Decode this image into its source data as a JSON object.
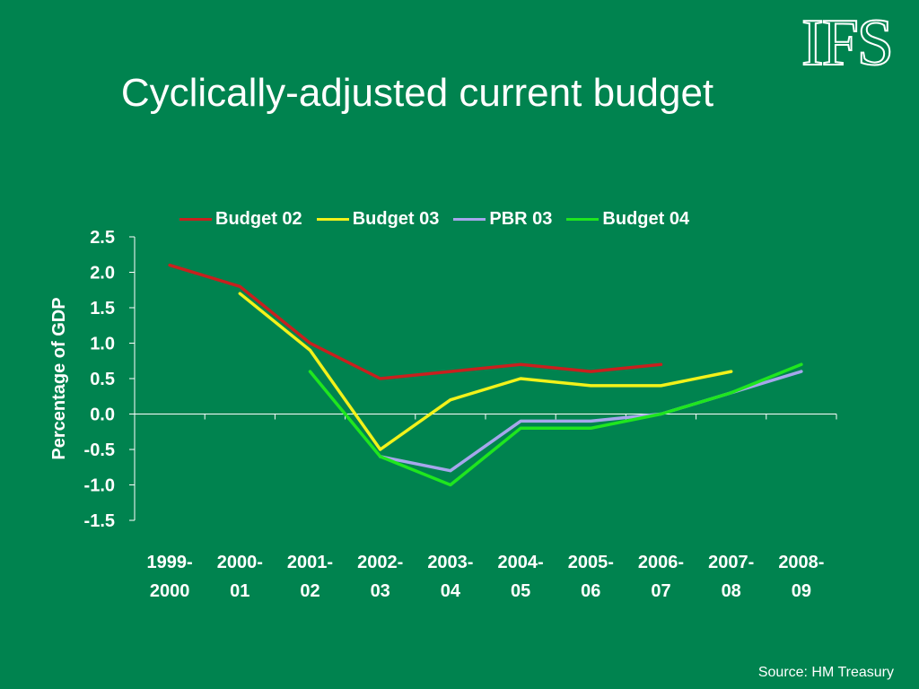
{
  "logo_text": "IFS",
  "source": "Source: HM Treasury",
  "colors": {
    "background": "#00834f",
    "axis": "#ffffff",
    "text": "#ffffff"
  },
  "chart_data": {
    "type": "line",
    "title": "Cyclically-adjusted current budget",
    "xlabel": "",
    "ylabel": "Percentage of GDP",
    "ylim": [
      -1.5,
      2.5
    ],
    "yticks": [
      "2.5",
      "2.0",
      "1.5",
      "1.0",
      "0.5",
      "0.0",
      "-0.5",
      "-1.0",
      "-1.5"
    ],
    "categories": [
      "1999-2000",
      "2000-01",
      "2001-02",
      "2002-03",
      "2003-04",
      "2004-05",
      "2005-06",
      "2006-07",
      "2007-08",
      "2008-09"
    ],
    "category_lines": [
      [
        "1999-",
        "2000"
      ],
      [
        "2000-",
        "01"
      ],
      [
        "2001-",
        "02"
      ],
      [
        "2002-",
        "03"
      ],
      [
        "2003-",
        "04"
      ],
      [
        "2004-",
        "05"
      ],
      [
        "2005-",
        "06"
      ],
      [
        "2006-",
        "07"
      ],
      [
        "2007-",
        "08"
      ],
      [
        "2008-",
        "09"
      ]
    ],
    "legend_position": "top",
    "series": [
      {
        "name": "Budget 02",
        "color": "#c8201e",
        "values": [
          2.1,
          1.8,
          1.0,
          0.5,
          0.6,
          0.7,
          0.6,
          0.7,
          null,
          null
        ]
      },
      {
        "name": "Budget 03",
        "color": "#f2f21a",
        "values": [
          null,
          1.7,
          0.9,
          -0.5,
          0.2,
          0.5,
          0.4,
          0.4,
          0.6,
          null
        ]
      },
      {
        "name": "PBR 03",
        "color": "#a6a6ec",
        "values": [
          null,
          null,
          null,
          -0.6,
          -0.8,
          -0.1,
          -0.1,
          0.0,
          0.3,
          0.6
        ]
      },
      {
        "name": "Budget 04",
        "color": "#1fe61f",
        "values": [
          null,
          null,
          0.6,
          -0.6,
          -1.0,
          -0.2,
          -0.2,
          0.0,
          0.3,
          0.7
        ]
      }
    ]
  }
}
